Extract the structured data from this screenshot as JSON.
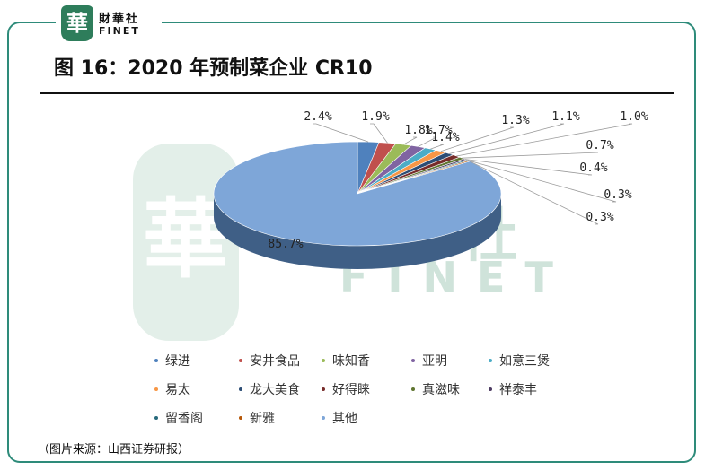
{
  "logo": {
    "seal_char": "華",
    "name_cn": "財華社",
    "name_en": "FINET",
    "colors": {
      "seal": "#2e7d5b",
      "watermark": "#cfe3da"
    }
  },
  "header": {
    "title": "图 16：2020 年预制菜企业 CR10"
  },
  "chart_data": {
    "type": "pie",
    "style": "3d",
    "legend_placement": "bottom",
    "slices": [
      {
        "name": "绿进",
        "value": 2.4,
        "label": "2.4%",
        "color": "#4f81bd"
      },
      {
        "name": "安井食品",
        "value": 1.9,
        "label": "1.9%",
        "color": "#c0504d"
      },
      {
        "name": "味知香",
        "value": 1.8,
        "label": "1.8%",
        "color": "#9bbb59"
      },
      {
        "name": "亚明",
        "value": 1.7,
        "label": "1.7%",
        "color": "#8064a2"
      },
      {
        "name": "如意三煲",
        "value": 1.4,
        "label": "1.4%",
        "color": "#4bacc6"
      },
      {
        "name": "易太",
        "value": 1.3,
        "label": "1.3%",
        "color": "#f79646"
      },
      {
        "name": "龙大美食",
        "value": 1.1,
        "label": "1.1%",
        "color": "#2c4d75"
      },
      {
        "name": "好得睐",
        "value": 1.0,
        "label": "1.0%",
        "color": "#772c2a"
      },
      {
        "name": "真滋味",
        "value": 0.7,
        "label": "0.7%",
        "color": "#5f7530"
      },
      {
        "name": "祥泰丰",
        "value": 0.4,
        "label": "0.4%",
        "color": "#4d3b62"
      },
      {
        "name": "留香阁",
        "value": 0.3,
        "label": "0.3%",
        "color": "#276a7c"
      },
      {
        "name": "新雅",
        "value": 0.3,
        "label": "0.3%",
        "color": "#b65708"
      },
      {
        "name": "其他",
        "value": 85.7,
        "label": "85.7%",
        "color": "#7ea6d8"
      }
    ]
  },
  "footer": {
    "source": "（图片来源：山西证券研报）"
  }
}
